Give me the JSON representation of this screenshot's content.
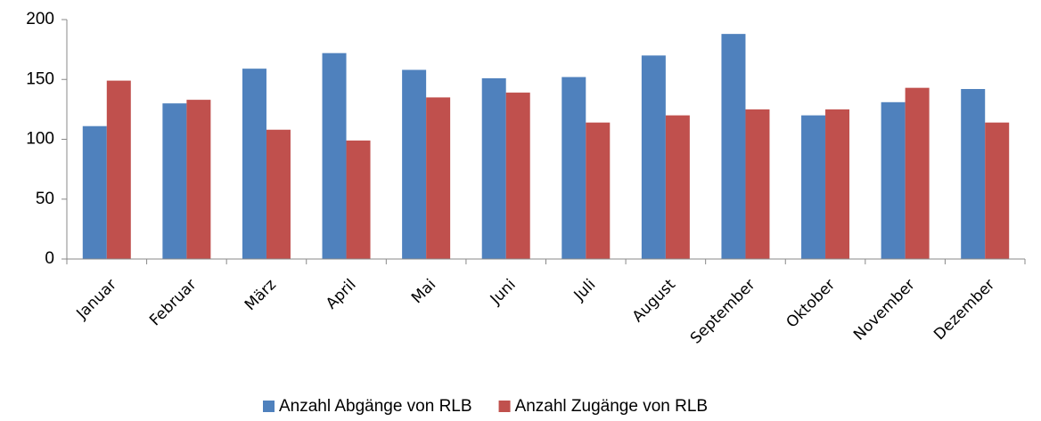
{
  "chart_data": {
    "type": "bar",
    "categories": [
      "Januar",
      "Februar",
      "März",
      "April",
      "Mai",
      "Juni",
      "Juli",
      "August",
      "September",
      "Oktober",
      "November",
      "Dezember"
    ],
    "series": [
      {
        "name": "Anzahl Abgänge von RLB",
        "color": "#4f81bd",
        "values": [
          111,
          130,
          159,
          172,
          158,
          151,
          152,
          170,
          188,
          120,
          131,
          142
        ]
      },
      {
        "name": "Anzahl Zugänge von RLB",
        "color": "#c0504d",
        "values": [
          149,
          133,
          108,
          99,
          135,
          139,
          114,
          120,
          125,
          125,
          143,
          114
        ]
      }
    ],
    "ylim": [
      0,
      200
    ],
    "yticks": [
      0,
      50,
      100,
      150,
      200
    ],
    "grid": false,
    "legend": "bottom"
  }
}
